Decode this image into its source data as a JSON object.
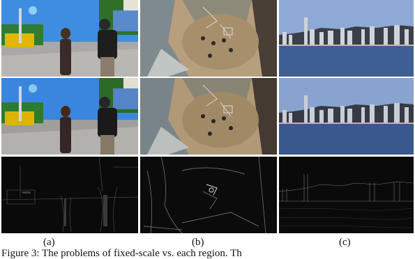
{
  "labels": [
    "(a)",
    "(b)",
    "(c)"
  ],
  "caption": "Figure 3: The problems of fixed-scale vs. each region. Th",
  "figure": {
    "columns": [
      {
        "scene": "amusement-park-couple"
      },
      {
        "scene": "courtyard-from-above"
      },
      {
        "scene": "city-skyline-harbor"
      }
    ],
    "rows": [
      "original",
      "enhanced",
      "edge-map"
    ]
  }
}
